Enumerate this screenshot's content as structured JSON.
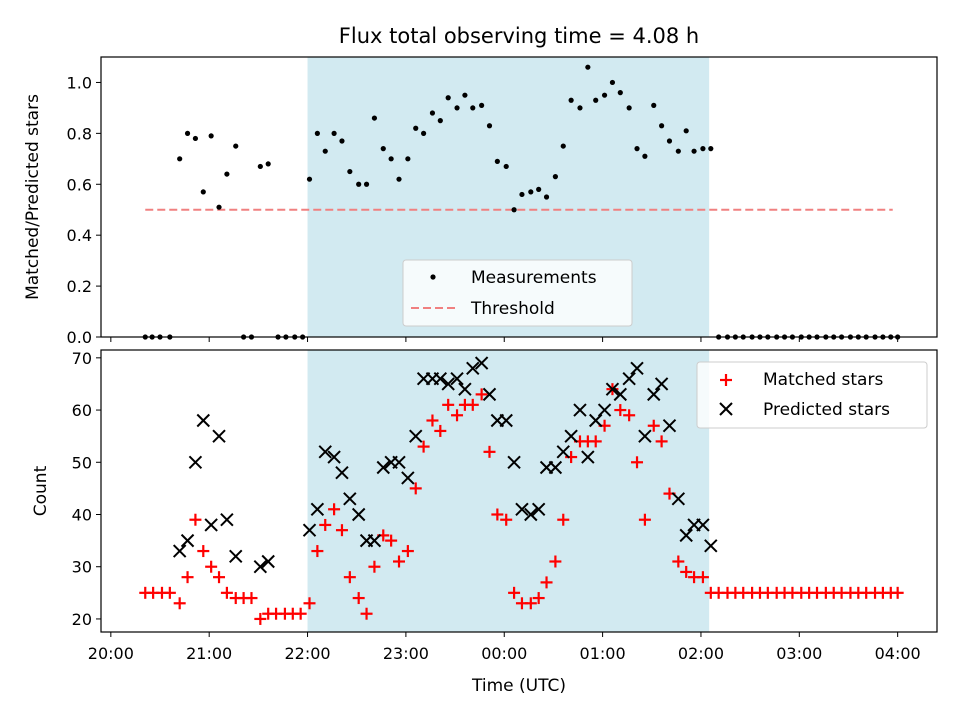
{
  "chart_data": [
    {
      "type": "scatter",
      "title": "Flux total observing time = 4.08 h",
      "xlabel": "",
      "ylabel": "Matched/Predicted stars",
      "x_unit": "hours after 20:00 UTC",
      "xlim": [
        -0.1,
        8.4
      ],
      "ylim": [
        0,
        1.1
      ],
      "yticks": [
        "0.0",
        "0.2",
        "0.4",
        "0.6",
        "0.8",
        "1.0"
      ],
      "observing_window": {
        "start": "22:00",
        "end": "02:05",
        "color": "#add8e6"
      },
      "threshold": {
        "name": "Threshold",
        "value": 0.5,
        "x_start": 0.35,
        "x_end": 7.95,
        "color": "#f08080"
      },
      "legend": {
        "position": "lower-center",
        "items": [
          "Measurements",
          "Threshold"
        ]
      },
      "series": [
        {
          "name": "Measurements",
          "color": "#000000",
          "points": [
            [
              0.35,
              0
            ],
            [
              0.42,
              0
            ],
            [
              0.5,
              0
            ],
            [
              0.6,
              0
            ],
            [
              0.7,
              0.7
            ],
            [
              0.78,
              0.8
            ],
            [
              0.86,
              0.78
            ],
            [
              0.94,
              0.57
            ],
            [
              1.02,
              0.79
            ],
            [
              1.1,
              0.51
            ],
            [
              1.18,
              0.64
            ],
            [
              1.27,
              0.75
            ],
            [
              1.35,
              0
            ],
            [
              1.43,
              0
            ],
            [
              1.52,
              0.67
            ],
            [
              1.6,
              0.68
            ],
            [
              1.7,
              0
            ],
            [
              1.78,
              0
            ],
            [
              1.87,
              0
            ],
            [
              1.95,
              0
            ],
            [
              2.02,
              0.62
            ],
            [
              2.1,
              0.8
            ],
            [
              2.18,
              0.73
            ],
            [
              2.27,
              0.8
            ],
            [
              2.35,
              0.77
            ],
            [
              2.43,
              0.65
            ],
            [
              2.52,
              0.6
            ],
            [
              2.6,
              0.6
            ],
            [
              2.68,
              0.86
            ],
            [
              2.77,
              0.74
            ],
            [
              2.85,
              0.7
            ],
            [
              2.93,
              0.62
            ],
            [
              3.02,
              0.7
            ],
            [
              3.1,
              0.82
            ],
            [
              3.18,
              0.8
            ],
            [
              3.27,
              0.88
            ],
            [
              3.35,
              0.85
            ],
            [
              3.43,
              0.94
            ],
            [
              3.52,
              0.9
            ],
            [
              3.6,
              0.95
            ],
            [
              3.68,
              0.9
            ],
            [
              3.77,
              0.91
            ],
            [
              3.85,
              0.83
            ],
            [
              3.93,
              0.69
            ],
            [
              4.02,
              0.67
            ],
            [
              4.1,
              0.5
            ],
            [
              4.18,
              0.56
            ],
            [
              4.27,
              0.57
            ],
            [
              4.35,
              0.58
            ],
            [
              4.43,
              0.55
            ],
            [
              4.52,
              0.63
            ],
            [
              4.6,
              0.75
            ],
            [
              4.68,
              0.93
            ],
            [
              4.77,
              0.9
            ],
            [
              4.85,
              1.06
            ],
            [
              4.93,
              0.93
            ],
            [
              5.02,
              0.95
            ],
            [
              5.1,
              1.0
            ],
            [
              5.18,
              0.96
            ],
            [
              5.27,
              0.9
            ],
            [
              5.35,
              0.74
            ],
            [
              5.43,
              0.71
            ],
            [
              5.52,
              0.91
            ],
            [
              5.6,
              0.83
            ],
            [
              5.68,
              0.77
            ],
            [
              5.77,
              0.73
            ],
            [
              5.85,
              0.81
            ],
            [
              5.93,
              0.73
            ],
            [
              6.02,
              0.74
            ],
            [
              6.1,
              0.74
            ],
            [
              6.18,
              0
            ],
            [
              6.27,
              0
            ],
            [
              6.35,
              0
            ],
            [
              6.43,
              0
            ],
            [
              6.52,
              0
            ],
            [
              6.6,
              0
            ],
            [
              6.68,
              0
            ],
            [
              6.77,
              0
            ],
            [
              6.85,
              0
            ],
            [
              6.93,
              0
            ],
            [
              7.02,
              0
            ],
            [
              7.1,
              0
            ],
            [
              7.18,
              0
            ],
            [
              7.27,
              0
            ],
            [
              7.35,
              0
            ],
            [
              7.43,
              0
            ],
            [
              7.52,
              0
            ],
            [
              7.6,
              0
            ],
            [
              7.68,
              0
            ],
            [
              7.77,
              0
            ],
            [
              7.85,
              0
            ],
            [
              7.93,
              0
            ],
            [
              8.0,
              0
            ]
          ]
        }
      ]
    },
    {
      "type": "scatter",
      "title": "",
      "xlabel": "Time (UTC)",
      "ylabel": "Count",
      "x_unit": "hours after 20:00 UTC",
      "xlim": [
        -0.1,
        8.4
      ],
      "ylim": [
        17.5,
        71.5
      ],
      "yticks": [
        "20",
        "30",
        "40",
        "50",
        "60",
        "70"
      ],
      "xticks": [
        "20:00",
        "21:00",
        "22:00",
        "23:00",
        "00:00",
        "01:00",
        "02:00",
        "03:00",
        "04:00"
      ],
      "observing_window": {
        "start": "22:00",
        "end": "02:05",
        "color": "#add8e6"
      },
      "legend": {
        "position": "top-right",
        "items": [
          "Matched stars",
          "Predicted stars"
        ]
      },
      "series": [
        {
          "name": "Matched stars",
          "marker": "plus",
          "color": "#ff0000",
          "points": [
            [
              0.35,
              25
            ],
            [
              0.43,
              25
            ],
            [
              0.52,
              25
            ],
            [
              0.6,
              25
            ],
            [
              0.7,
              23
            ],
            [
              0.78,
              28
            ],
            [
              0.86,
              39
            ],
            [
              0.94,
              33
            ],
            [
              1.02,
              30
            ],
            [
              1.1,
              28
            ],
            [
              1.18,
              25
            ],
            [
              1.27,
              24
            ],
            [
              1.35,
              24
            ],
            [
              1.43,
              24
            ],
            [
              1.52,
              20
            ],
            [
              1.6,
              21
            ],
            [
              1.68,
              21
            ],
            [
              1.77,
              21
            ],
            [
              1.85,
              21
            ],
            [
              1.93,
              21
            ],
            [
              2.02,
              23
            ],
            [
              2.1,
              33
            ],
            [
              2.18,
              38
            ],
            [
              2.27,
              41
            ],
            [
              2.35,
              37
            ],
            [
              2.43,
              28
            ],
            [
              2.52,
              24
            ],
            [
              2.6,
              21
            ],
            [
              2.68,
              30
            ],
            [
              2.77,
              36
            ],
            [
              2.85,
              35
            ],
            [
              2.93,
              31
            ],
            [
              3.02,
              33
            ],
            [
              3.1,
              45
            ],
            [
              3.18,
              53
            ],
            [
              3.27,
              58
            ],
            [
              3.35,
              56
            ],
            [
              3.43,
              61
            ],
            [
              3.52,
              59
            ],
            [
              3.6,
              61
            ],
            [
              3.68,
              61
            ],
            [
              3.77,
              63
            ],
            [
              3.85,
              52
            ],
            [
              3.93,
              40
            ],
            [
              4.02,
              39
            ],
            [
              4.1,
              25
            ],
            [
              4.18,
              23
            ],
            [
              4.27,
              23
            ],
            [
              4.35,
              24
            ],
            [
              4.43,
              27
            ],
            [
              4.52,
              31
            ],
            [
              4.6,
              39
            ],
            [
              4.68,
              51
            ],
            [
              4.77,
              54
            ],
            [
              4.85,
              54
            ],
            [
              4.93,
              54
            ],
            [
              5.02,
              57
            ],
            [
              5.1,
              64
            ],
            [
              5.18,
              60
            ],
            [
              5.27,
              59
            ],
            [
              5.35,
              50
            ],
            [
              5.43,
              39
            ],
            [
              5.52,
              57
            ],
            [
              5.6,
              54
            ],
            [
              5.68,
              44
            ],
            [
              5.77,
              31
            ],
            [
              5.85,
              29
            ],
            [
              5.93,
              28
            ],
            [
              6.02,
              28
            ],
            [
              6.1,
              25
            ],
            [
              6.18,
              25
            ],
            [
              6.27,
              25
            ],
            [
              6.35,
              25
            ],
            [
              6.43,
              25
            ],
            [
              6.52,
              25
            ],
            [
              6.6,
              25
            ],
            [
              6.68,
              25
            ],
            [
              6.77,
              25
            ],
            [
              6.85,
              25
            ],
            [
              6.93,
              25
            ],
            [
              7.02,
              25
            ],
            [
              7.1,
              25
            ],
            [
              7.18,
              25
            ],
            [
              7.27,
              25
            ],
            [
              7.35,
              25
            ],
            [
              7.43,
              25
            ],
            [
              7.52,
              25
            ],
            [
              7.6,
              25
            ],
            [
              7.68,
              25
            ],
            [
              7.77,
              25
            ],
            [
              7.85,
              25
            ],
            [
              7.93,
              25
            ],
            [
              8.0,
              25
            ]
          ]
        },
        {
          "name": "Predicted stars",
          "marker": "x",
          "color": "#000000",
          "points": [
            [
              0.7,
              33
            ],
            [
              0.78,
              35
            ],
            [
              0.86,
              50
            ],
            [
              0.94,
              58
            ],
            [
              1.02,
              38
            ],
            [
              1.1,
              55
            ],
            [
              1.18,
              39
            ],
            [
              1.27,
              32
            ],
            [
              1.52,
              30
            ],
            [
              1.6,
              31
            ],
            [
              2.02,
              37
            ],
            [
              2.1,
              41
            ],
            [
              2.18,
              52
            ],
            [
              2.27,
              51
            ],
            [
              2.35,
              48
            ],
            [
              2.43,
              43
            ],
            [
              2.52,
              40
            ],
            [
              2.6,
              35
            ],
            [
              2.68,
              35
            ],
            [
              2.77,
              49
            ],
            [
              2.85,
              50
            ],
            [
              2.93,
              50
            ],
            [
              3.02,
              47
            ],
            [
              3.1,
              55
            ],
            [
              3.18,
              66
            ],
            [
              3.27,
              66
            ],
            [
              3.35,
              66
            ],
            [
              3.43,
              65
            ],
            [
              3.52,
              66
            ],
            [
              3.6,
              64
            ],
            [
              3.68,
              68
            ],
            [
              3.77,
              69
            ],
            [
              3.85,
              63
            ],
            [
              3.93,
              58
            ],
            [
              4.02,
              58
            ],
            [
              4.1,
              50
            ],
            [
              4.18,
              41
            ],
            [
              4.27,
              40
            ],
            [
              4.35,
              41
            ],
            [
              4.43,
              49
            ],
            [
              4.52,
              49
            ],
            [
              4.6,
              52
            ],
            [
              4.68,
              55
            ],
            [
              4.77,
              60
            ],
            [
              4.85,
              51
            ],
            [
              4.93,
              58
            ],
            [
              5.02,
              60
            ],
            [
              5.1,
              64
            ],
            [
              5.18,
              63
            ],
            [
              5.27,
              66
            ],
            [
              5.35,
              68
            ],
            [
              5.43,
              55
            ],
            [
              5.52,
              63
            ],
            [
              5.6,
              65
            ],
            [
              5.68,
              57
            ],
            [
              5.77,
              43
            ],
            [
              5.85,
              36
            ],
            [
              5.93,
              38
            ],
            [
              6.02,
              38
            ],
            [
              6.1,
              34
            ]
          ]
        }
      ]
    }
  ]
}
